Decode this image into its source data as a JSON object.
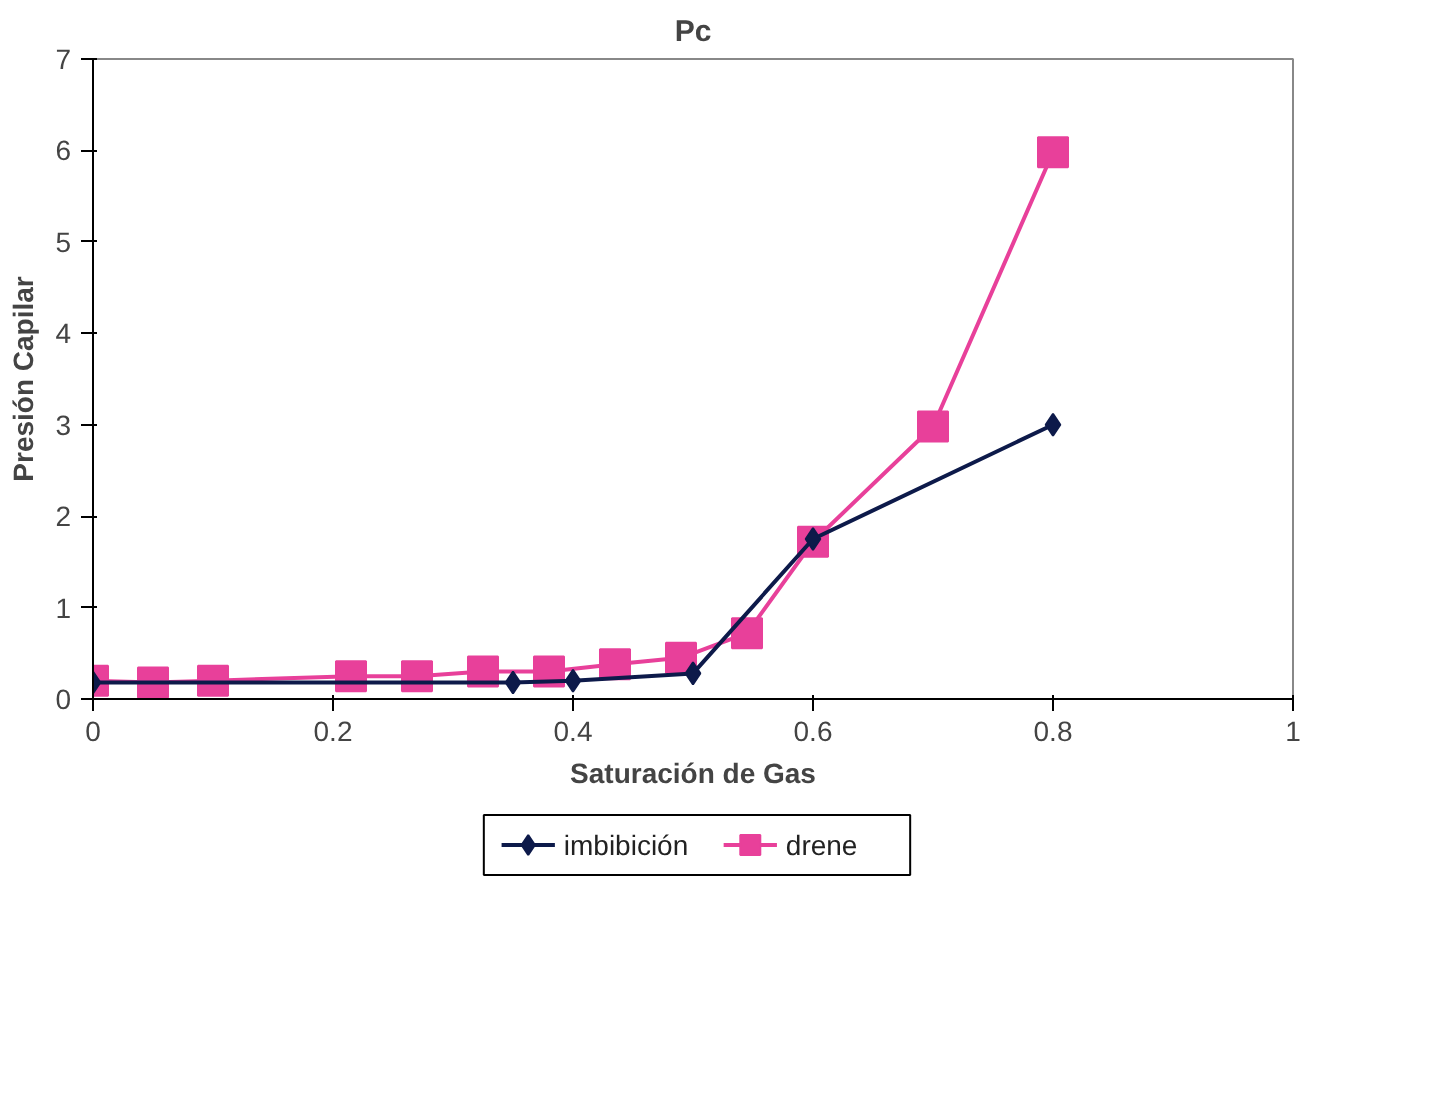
{
  "chart_data": {
    "type": "line",
    "title": "Pc",
    "xlabel": "Saturación de Gas",
    "ylabel": "Presión Capilar",
    "xlim": [
      0,
      1
    ],
    "xticks": [
      0,
      0.2,
      0.4,
      0.6,
      0.8,
      1
    ],
    "ylim": [
      0,
      7
    ],
    "yticks": [
      0,
      1,
      2,
      3,
      4,
      5,
      6,
      7
    ],
    "grid": false,
    "legend": "bottom",
    "series": [
      {
        "name": "drene",
        "color": "#e8409a",
        "marker": "square",
        "x": [
          0,
          0.05,
          0.1,
          0.215,
          0.27,
          0.325,
          0.38,
          0.435,
          0.49,
          0.545,
          0.6,
          0.7,
          0.8
        ],
        "values": [
          0.2,
          0.18,
          0.2,
          0.25,
          0.25,
          0.3,
          0.3,
          0.38,
          0.45,
          0.72,
          1.72,
          2.98,
          5.98
        ]
      },
      {
        "name": "imbibición",
        "color": "#0d1a4a",
        "marker": "diamond",
        "x": [
          0,
          0.35,
          0.4,
          0.5,
          0.6,
          0.8
        ],
        "values": [
          0.18,
          0.18,
          0.2,
          0.28,
          1.75,
          3.0
        ]
      }
    ]
  }
}
